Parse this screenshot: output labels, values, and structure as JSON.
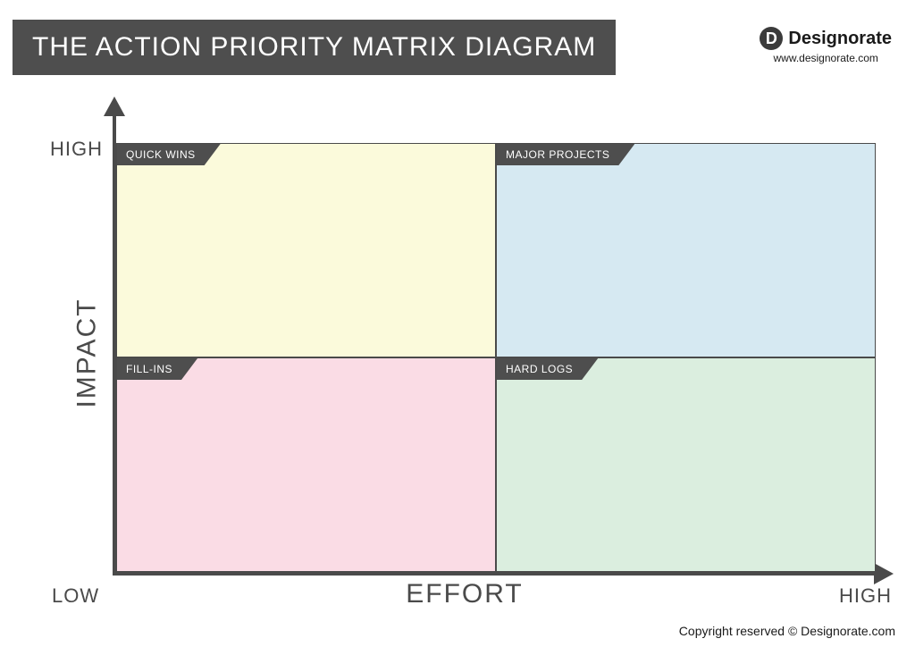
{
  "header": {
    "title": "THE ACTION PRIORITY MATRIX DIAGRAM",
    "title_bg": "#4e4e4e",
    "title_color": "#ffffff",
    "title_fontsize": 30
  },
  "brand": {
    "mark_letter": "D",
    "name": "Designorate",
    "url": "www.designorate.com",
    "mark_bg": "#3b3b3b",
    "mark_color": "#ffffff"
  },
  "matrix": {
    "type": "quadrant",
    "x_axis": {
      "label": "EFFORT",
      "low": "LOW",
      "high": "HIGH"
    },
    "y_axis": {
      "label": "IMPACT",
      "low": "LOW",
      "high": "HIGH"
    },
    "axis_color": "#4a4a4a",
    "axis_label_color": "#4a4a4a",
    "axis_label_fontsize": 30,
    "tick_label_fontsize": 22,
    "tag_bg": "#4e4e4e",
    "tag_color": "#ffffff",
    "tag_fontsize": 12,
    "border_color": "#4a4a4a",
    "quadrants": {
      "top_left": {
        "label": "QUICK WINS",
        "fill": "#fbfadb"
      },
      "top_right": {
        "label": "MAJOR PROJECTS",
        "fill": "#d6e9f2"
      },
      "bottom_left": {
        "label": "FILL-INS",
        "fill": "#fadce5"
      },
      "bottom_right": {
        "label": "HARD LOGS",
        "fill": "#dbeedf"
      }
    }
  },
  "footer": {
    "copyright": "Copyright reserved © Designorate.com"
  }
}
